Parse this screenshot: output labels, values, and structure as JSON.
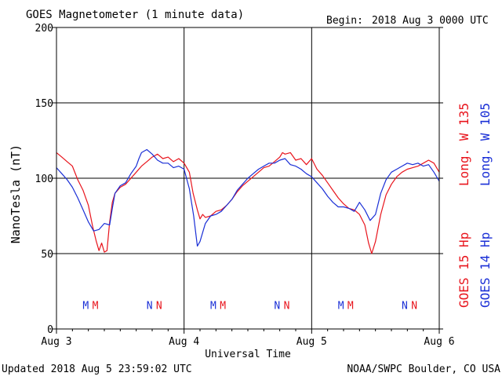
{
  "header": {
    "title": "GOES Magnetometer (1 minute data)",
    "begin_label": "Begin:",
    "begin_value": "2018 Aug 3 0000 UTC"
  },
  "footer": {
    "updated": "Updated 2018 Aug  5 23:59:02 UTC",
    "credit": "NOAA/SWPC Boulder, CO USA"
  },
  "colors": {
    "goes15": "#e8141c",
    "goes14": "#1a2fd6",
    "grid": "#000000",
    "background": "#ffffff"
  },
  "chart_data": {
    "type": "line",
    "title": "GOES Magnetometer (1 minute data)",
    "xlabel": "Universal Time",
    "ylabel": "NanoTesla (nT)",
    "xlim": [
      0,
      72
    ],
    "ylim": [
      0,
      200
    ],
    "y_ticks": [
      0,
      50,
      100,
      150,
      200
    ],
    "x_ticks": [
      {
        "hour": 0,
        "label": "Aug 3"
      },
      {
        "hour": 24,
        "label": "Aug 4"
      },
      {
        "hour": 48,
        "label": "Aug 5"
      },
      {
        "hour": 72,
        "label": "Aug 6"
      }
    ],
    "grid": true,
    "legend_position": "right-side-vertical",
    "series": [
      {
        "name": "GOES 15 Hp",
        "legend_extra": "Long. W 135",
        "color": "#e8141c",
        "points": [
          [
            0,
            117
          ],
          [
            1,
            114
          ],
          [
            2,
            111
          ],
          [
            3,
            108
          ],
          [
            4,
            99
          ],
          [
            5,
            92
          ],
          [
            6,
            82
          ],
          [
            6.8,
            68
          ],
          [
            7.5,
            58
          ],
          [
            8,
            52
          ],
          [
            8.5,
            57
          ],
          [
            9,
            51
          ],
          [
            9.5,
            52
          ],
          [
            10,
            71
          ],
          [
            10.5,
            84
          ],
          [
            11,
            90
          ],
          [
            12,
            94
          ],
          [
            13,
            96
          ],
          [
            14,
            100
          ],
          [
            15,
            104
          ],
          [
            16,
            108
          ],
          [
            17,
            111
          ],
          [
            18,
            114
          ],
          [
            19,
            116
          ],
          [
            20,
            113
          ],
          [
            21,
            114
          ],
          [
            22,
            111
          ],
          [
            23,
            113
          ],
          [
            24,
            110
          ],
          [
            25,
            104
          ],
          [
            25.7,
            90
          ],
          [
            26.5,
            79
          ],
          [
            27,
            73
          ],
          [
            27.5,
            76
          ],
          [
            28,
            74
          ],
          [
            29,
            75
          ],
          [
            30,
            78
          ],
          [
            31,
            79
          ],
          [
            32,
            82
          ],
          [
            33,
            86
          ],
          [
            34,
            91
          ],
          [
            35,
            95
          ],
          [
            36,
            98
          ],
          [
            37,
            101
          ],
          [
            38,
            104
          ],
          [
            39,
            107
          ],
          [
            40,
            108
          ],
          [
            41,
            111
          ],
          [
            42,
            114
          ],
          [
            42.5,
            117
          ],
          [
            43,
            116
          ],
          [
            44,
            117
          ],
          [
            45,
            112
          ],
          [
            46,
            113
          ],
          [
            47,
            109
          ],
          [
            48,
            113
          ],
          [
            49,
            106
          ],
          [
            50,
            102
          ],
          [
            51,
            97
          ],
          [
            52,
            92
          ],
          [
            53,
            87
          ],
          [
            54,
            83
          ],
          [
            55,
            80
          ],
          [
            56,
            79
          ],
          [
            57,
            76
          ],
          [
            58,
            69
          ],
          [
            58.7,
            57
          ],
          [
            59.3,
            50
          ],
          [
            60,
            58
          ],
          [
            61,
            76
          ],
          [
            62,
            89
          ],
          [
            63,
            96
          ],
          [
            64,
            101
          ],
          [
            65,
            104
          ],
          [
            66,
            106
          ],
          [
            67,
            107
          ],
          [
            68,
            108
          ],
          [
            69,
            110
          ],
          [
            70,
            112
          ],
          [
            71,
            110
          ],
          [
            72,
            104
          ]
        ]
      },
      {
        "name": "GOES 14 Hp",
        "legend_extra": "Long. W 105",
        "color": "#1a2fd6",
        "points": [
          [
            0,
            107
          ],
          [
            1,
            103
          ],
          [
            2,
            99
          ],
          [
            3,
            94
          ],
          [
            4,
            87
          ],
          [
            5,
            79
          ],
          [
            6,
            71
          ],
          [
            7,
            65
          ],
          [
            8,
            66
          ],
          [
            9,
            70
          ],
          [
            10,
            69
          ],
          [
            10.5,
            80
          ],
          [
            11,
            90
          ],
          [
            12,
            95
          ],
          [
            13,
            97
          ],
          [
            14,
            103
          ],
          [
            15,
            108
          ],
          [
            15.5,
            113
          ],
          [
            16,
            117
          ],
          [
            17,
            119
          ],
          [
            18,
            116
          ],
          [
            19,
            112
          ],
          [
            20,
            110
          ],
          [
            21,
            110
          ],
          [
            22,
            107
          ],
          [
            23,
            108
          ],
          [
            24,
            106
          ],
          [
            25,
            93
          ],
          [
            25.8,
            75
          ],
          [
            26.5,
            55
          ],
          [
            27,
            58
          ],
          [
            27.5,
            64
          ],
          [
            28,
            70
          ],
          [
            29,
            75
          ],
          [
            30,
            76
          ],
          [
            31,
            78
          ],
          [
            32,
            82
          ],
          [
            33,
            86
          ],
          [
            34,
            92
          ],
          [
            35,
            96
          ],
          [
            36,
            100
          ],
          [
            37,
            103
          ],
          [
            38,
            106
          ],
          [
            39,
            108
          ],
          [
            40,
            110
          ],
          [
            41,
            110
          ],
          [
            42,
            112
          ],
          [
            43,
            113
          ],
          [
            44,
            109
          ],
          [
            45,
            108
          ],
          [
            46,
            106
          ],
          [
            47,
            103
          ],
          [
            48,
            101
          ],
          [
            49,
            97
          ],
          [
            50,
            93
          ],
          [
            51,
            88
          ],
          [
            52,
            84
          ],
          [
            53,
            81
          ],
          [
            54,
            81
          ],
          [
            55,
            80
          ],
          [
            56,
            78
          ],
          [
            57,
            84
          ],
          [
            58,
            79
          ],
          [
            59,
            72
          ],
          [
            60,
            76
          ],
          [
            61,
            90
          ],
          [
            62,
            99
          ],
          [
            63,
            104
          ],
          [
            64,
            106
          ],
          [
            65,
            108
          ],
          [
            66,
            110
          ],
          [
            67,
            109
          ],
          [
            68,
            110
          ],
          [
            69,
            108
          ],
          [
            70,
            109
          ],
          [
            71,
            104
          ],
          [
            72,
            98
          ]
        ]
      }
    ],
    "annotations": [
      {
        "hour": 5.5,
        "y": 16,
        "text": "M",
        "series": "GOES 14 Hp"
      },
      {
        "hour": 7.3,
        "y": 16,
        "text": "M",
        "series": "GOES 15 Hp"
      },
      {
        "hour": 17.5,
        "y": 16,
        "text": "N",
        "series": "GOES 14 Hp"
      },
      {
        "hour": 19.3,
        "y": 16,
        "text": "N",
        "series": "GOES 15 Hp"
      },
      {
        "hour": 29.5,
        "y": 16,
        "text": "M",
        "series": "GOES 14 Hp"
      },
      {
        "hour": 31.3,
        "y": 16,
        "text": "M",
        "series": "GOES 15 Hp"
      },
      {
        "hour": 41.5,
        "y": 16,
        "text": "N",
        "series": "GOES 14 Hp"
      },
      {
        "hour": 43.3,
        "y": 16,
        "text": "N",
        "series": "GOES 15 Hp"
      },
      {
        "hour": 53.5,
        "y": 16,
        "text": "M",
        "series": "GOES 14 Hp"
      },
      {
        "hour": 55.3,
        "y": 16,
        "text": "M",
        "series": "GOES 15 Hp"
      },
      {
        "hour": 65.5,
        "y": 16,
        "text": "N",
        "series": "GOES 14 Hp"
      },
      {
        "hour": 67.3,
        "y": 16,
        "text": "N",
        "series": "GOES 15 Hp"
      }
    ]
  }
}
